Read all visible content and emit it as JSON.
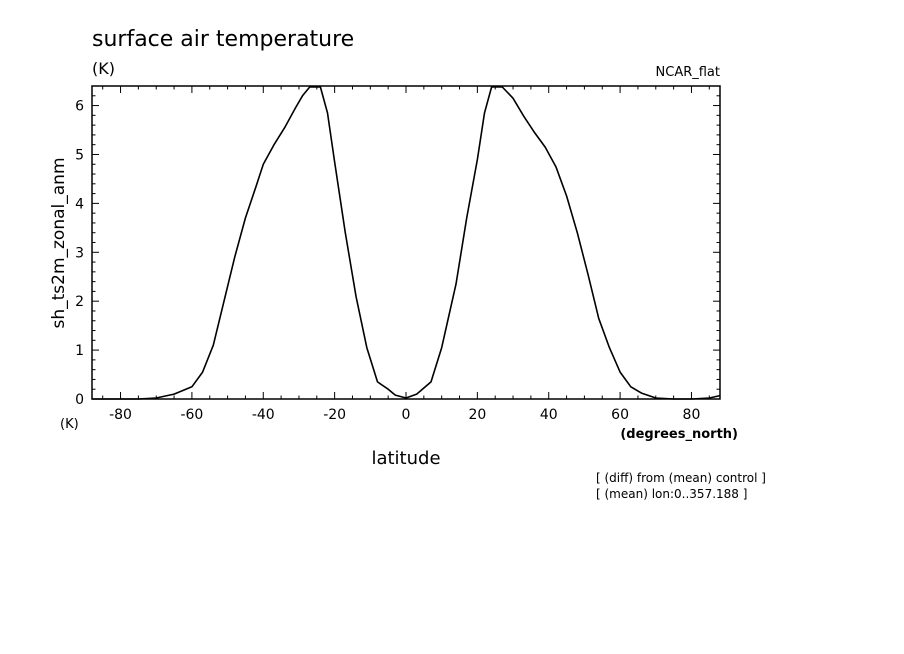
{
  "chart_data": {
    "type": "line",
    "title": "surface air temperature",
    "units_top": "(K)",
    "units_bottom": "(K)",
    "dataset_label": "NCAR_flat",
    "ylabel": "sh_ts2m_zonal_anm",
    "xlabel": "latitude",
    "xunits": "(degrees_north)",
    "notes": [
      "[ (diff) from (mean) control ]",
      "[ (mean) lon:0..357.188 ]"
    ],
    "xlim": [
      -88,
      88
    ],
    "ylim": [
      0,
      6.4
    ],
    "xticks": [
      -80,
      -60,
      -40,
      -20,
      0,
      20,
      40,
      60,
      80
    ],
    "xtick_labels": [
      "-80",
      "-60",
      "-40",
      "-20",
      "0",
      "20",
      "40",
      "60",
      "80"
    ],
    "yticks": [
      0,
      1,
      2,
      3,
      4,
      5,
      6
    ],
    "ytick_labels": [
      "0",
      "1",
      "2",
      "3",
      "4",
      "5",
      "6"
    ],
    "grid": false,
    "series": [
      {
        "x": [
          -88,
          -85,
          -80,
          -75,
          -70,
          -65,
          -60,
          -57,
          -54,
          -51,
          -48,
          -45,
          -42,
          -40,
          -37,
          -34,
          -31,
          -29,
          -27,
          -24,
          -22,
          -20,
          -17,
          -14,
          -11,
          -8,
          -5,
          -3,
          0,
          3,
          7,
          10,
          14,
          17,
          20,
          22,
          24,
          27,
          30,
          33,
          36,
          39,
          42,
          45,
          48,
          51,
          54,
          57,
          60,
          63,
          66,
          70,
          75,
          80,
          85,
          88
        ],
        "y": [
          0.0,
          0.0,
          0.0,
          0.0,
          0.02,
          0.1,
          0.25,
          0.55,
          1.1,
          2.0,
          2.9,
          3.7,
          4.35,
          4.8,
          5.2,
          5.55,
          5.95,
          6.2,
          6.38,
          6.38,
          5.85,
          4.85,
          3.4,
          2.1,
          1.05,
          0.35,
          0.2,
          0.08,
          0.02,
          0.1,
          0.35,
          1.05,
          2.35,
          3.7,
          4.9,
          5.85,
          6.38,
          6.38,
          6.15,
          5.78,
          5.45,
          5.15,
          4.75,
          4.15,
          3.4,
          2.55,
          1.65,
          1.05,
          0.55,
          0.25,
          0.12,
          0.02,
          0.0,
          0.0,
          0.02,
          0.07
        ]
      }
    ]
  }
}
